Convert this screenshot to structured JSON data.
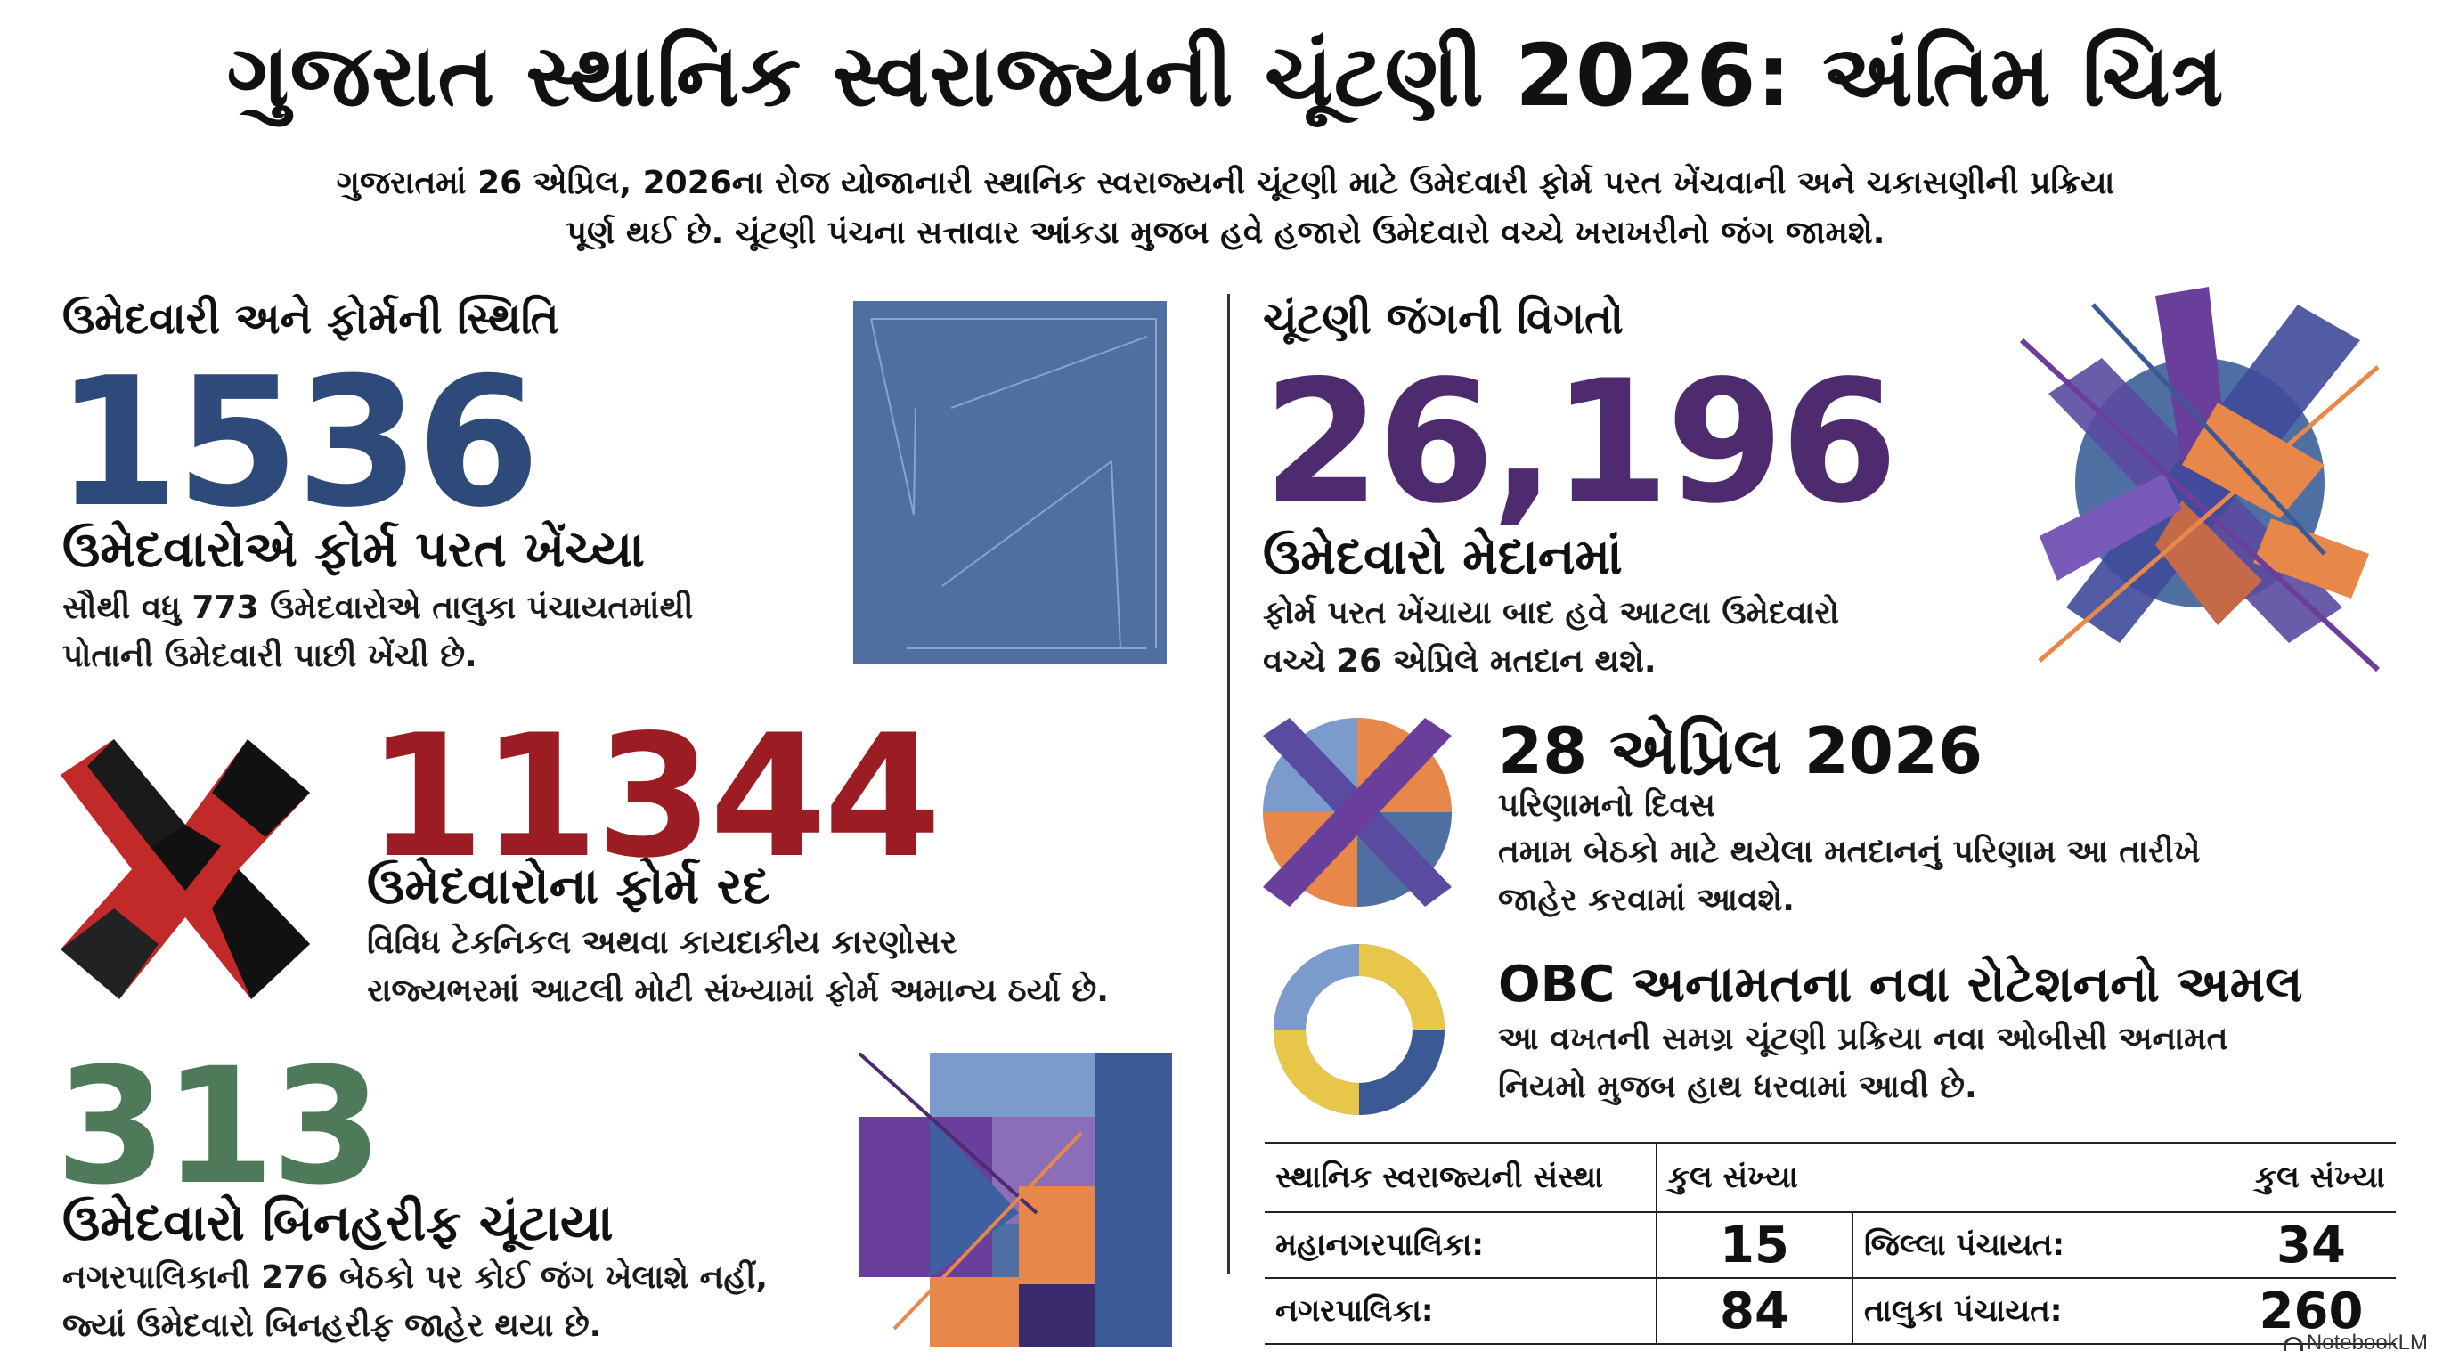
{
  "header": {
    "title": "ગુજરાત સ્થાનિક સ્વરાજ્યની ચૂંટણી 2026: અંતિમ ચિત્ર",
    "subtitle_line1": "ગુજરાતમાં 26 એપ્રિલ, 2026ના રોજ યોજાનારી સ્થાનિક સ્વરાજ્યની ચૂંટણી માટે ઉમેદવારી ફોર્મ પરત ખેંચવાની અને ચકાસણીની પ્રક્રિયા",
    "subtitle_line2": "પૂર્ણ થઈ છે. ચૂંટણી પંચના સત્તાવાર આંકડા મુજબ હવે હજારો ઉમેદવારો વચ્ચે ખરાખરીનો જંગ જામશે."
  },
  "left": {
    "heading": "ઉમેદવારી અને ફોર્મની સ્થિતિ",
    "withdrawn": {
      "number": "1536",
      "label": "ઉમેદવારોએ ફોર્મ પરત ખેંચ્યા",
      "desc_line1": "સૌથી વધુ 773 ઉમેદવારોએ તાલુકા પંચાયતમાંથી",
      "desc_line2": "પોતાની ઉમેદવારી પાછી ખેંચી છે."
    },
    "rejected": {
      "number": "11344",
      "label": "ઉમેદવારોના ફોર્મ રદ",
      "desc_line1": "વિવિધ ટેકનિકલ અથવા કાયદાકીય કારણોસર",
      "desc_line2": "રાજ્યભરમાં આટલી મોટી સંખ્યામાં ફોર્મ અમાન્ય ઠર્યા છે."
    },
    "unopposed": {
      "number": "313",
      "label": "ઉમેદવારો બિનહરીફ ચૂંટાયા",
      "desc_line1": "નગરપાલિકાની 276 બેઠકો પર કોઈ જંગ ખેલાશે નહીં,",
      "desc_line2": "જ્યાં ઉમેદવારો બિનહરીફ જાહેર થયા છે."
    }
  },
  "right": {
    "heading": "ચૂંટણી જંગની વિગતો",
    "contest": {
      "number": "26,196",
      "label": "ઉમેદવારો મેદાનમાં",
      "desc_line1": "ફોર્મ પરત ખેંચાયા બાદ હવે આટલા ઉમેદવારો",
      "desc_line2": "વચ્ચે 26 એપ્રિલે મતદાન થશે."
    },
    "result": {
      "date": "28 એપ્રિલ 2026",
      "label": "પરિણામનો દિવસ",
      "desc_line1": "તમામ બેઠકો માટે થયેલા મતદાનનું પરિણામ આ તારીખે",
      "desc_line2": "જાહેર કરવામાં આવશે."
    },
    "obc": {
      "title": "OBC અનામતના નવા રોટેશનનો અમલ",
      "desc_line1": "આ વખતની સમગ્ર ચૂંટણી પ્રક્રિયા નવા ઓબીસી અનામત",
      "desc_line2": "નિયમો મુજબ હાથ ધરવામાં આવી છે."
    }
  },
  "table": {
    "col1_header": "સ્થાનિક સ્વરાજ્યની સંસ્થા",
    "col2_header": "કુલ સંખ્યા",
    "col4_header": "કુલ સંખ્યા",
    "rows": [
      {
        "name1": "મહાનગરપાલિકા:",
        "count1": "15",
        "name2": "જિલ્લા પંચાયત:",
        "count2": "34"
      },
      {
        "name1": "નગરપાલિકા:",
        "count1": "84",
        "name2": "તાલુકા પંચાયત:",
        "count2": "260"
      }
    ]
  },
  "brand": "NotebookLM",
  "colors": {
    "navy": "#2d4a7a",
    "crimson": "#9b1c22",
    "green": "#4e7a5a",
    "purple": "#4e2a6e",
    "steel_blue": "#4f6fa3",
    "orange": "#e8874a",
    "violet": "#6a4aa0"
  }
}
